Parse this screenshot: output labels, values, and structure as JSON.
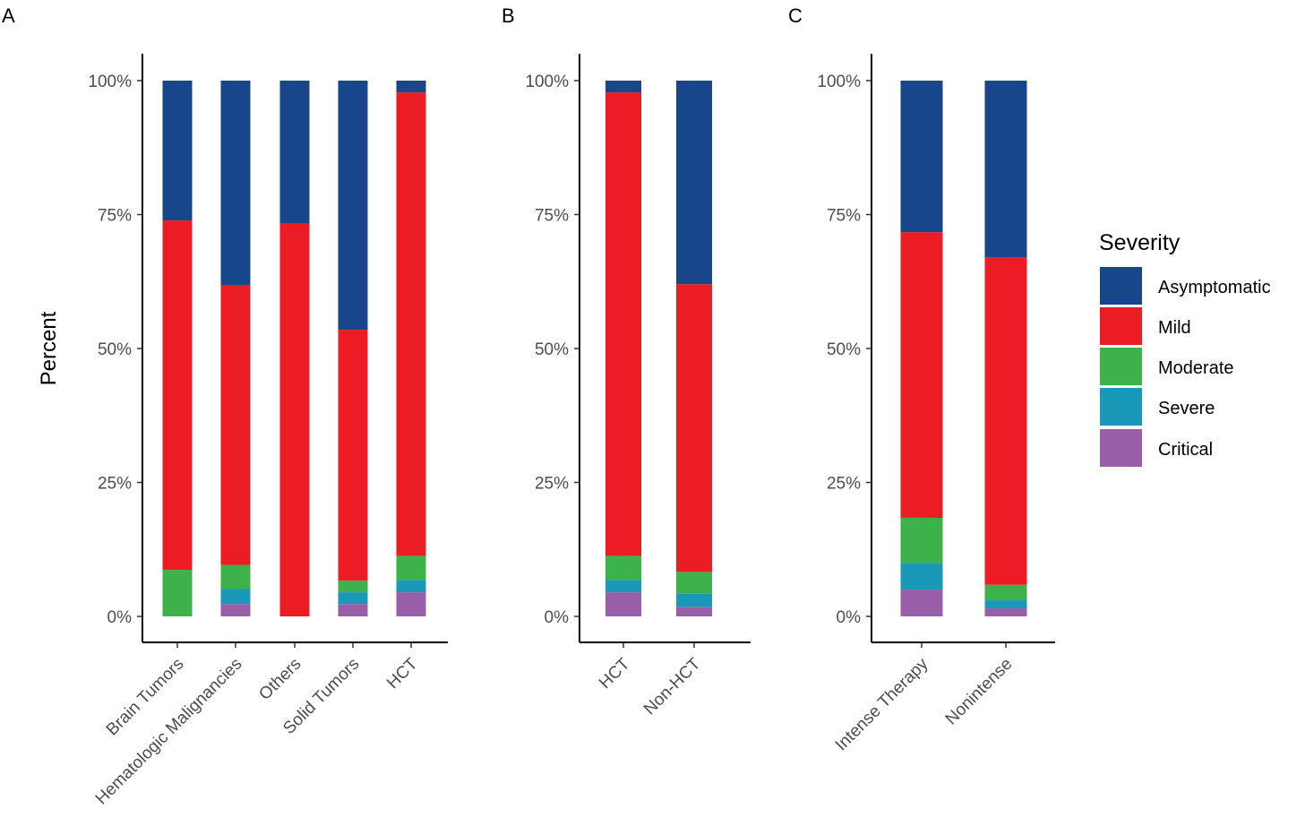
{
  "chart_data": {
    "severity_levels": [
      "Critical",
      "Severe",
      "Moderate",
      "Mild",
      "Asymptomatic"
    ],
    "colors": {
      "Asymptomatic": "#17478A",
      "Mild": "#EC1C24",
      "Moderate": "#3DB14A",
      "Severe": "#1A98B8",
      "Critical": "#985EA7"
    },
    "legend": {
      "title": "Severity",
      "entries": [
        "Asymptomatic",
        "Mild",
        "Moderate",
        "Severe",
        "Critical"
      ],
      "position": "right"
    },
    "ylabel": "Percent",
    "ylim": [
      0,
      100
    ],
    "yticks": [
      "0%",
      "25%",
      "50%",
      "75%",
      "100%"
    ],
    "panels": [
      {
        "letter": "A",
        "type": "stacked-bar",
        "categories": [
          "Brain Tumors",
          "Hematologic Malignancies",
          "Others",
          "Solid Tumors",
          "HCT"
        ],
        "series": [
          {
            "name": "Critical",
            "values": [
              0,
              2.3,
              0,
              2.3,
              4.5
            ]
          },
          {
            "name": "Severe",
            "values": [
              0,
              2.8,
              0,
              2.2,
              2.3
            ]
          },
          {
            "name": "Moderate",
            "values": [
              8.7,
              4.5,
              0,
              2.2,
              4.5
            ]
          },
          {
            "name": "Mild",
            "values": [
              65.2,
              52.2,
              73.3,
              46.8,
              86.5
            ]
          },
          {
            "name": "Asymptomatic",
            "values": [
              26.1,
              38.2,
              26.7,
              46.5,
              2.2
            ]
          }
        ]
      },
      {
        "letter": "B",
        "type": "stacked-bar",
        "categories": [
          "HCT",
          "Non-HCT"
        ],
        "series": [
          {
            "name": "Critical",
            "values": [
              4.5,
              1.8
            ]
          },
          {
            "name": "Severe",
            "values": [
              2.3,
              2.4
            ]
          },
          {
            "name": "Moderate",
            "values": [
              4.5,
              4.1
            ]
          },
          {
            "name": "Mild",
            "values": [
              86.5,
              53.7
            ]
          },
          {
            "name": "Asymptomatic",
            "values": [
              2.2,
              38.0
            ]
          }
        ]
      },
      {
        "letter": "C",
        "type": "stacked-bar",
        "categories": [
          "Intense Therapy",
          "Nonintense"
        ],
        "series": [
          {
            "name": "Critical",
            "values": [
              5.0,
              1.5
            ]
          },
          {
            "name": "Severe",
            "values": [
              5.0,
              1.5
            ]
          },
          {
            "name": "Moderate",
            "values": [
              8.4,
              2.9
            ]
          },
          {
            "name": "Mild",
            "values": [
              53.3,
              61.1
            ]
          },
          {
            "name": "Asymptomatic",
            "values": [
              28.3,
              33.0
            ]
          }
        ]
      }
    ]
  }
}
